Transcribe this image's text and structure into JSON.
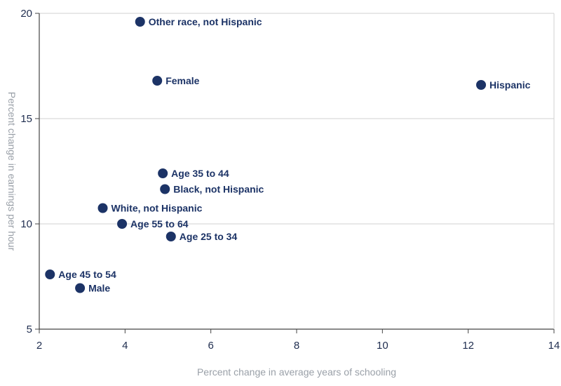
{
  "chart_data": {
    "type": "scatter",
    "xlabel": "Percent change in average years of schooling",
    "ylabel": "Percent change in earnings per hour",
    "xlim": [
      2,
      14
    ],
    "ylim": [
      5,
      20
    ],
    "x_ticks": [
      2,
      4,
      6,
      8,
      10,
      12,
      14
    ],
    "y_ticks": [
      5,
      10,
      15,
      20
    ],
    "grid": "horizontal",
    "marker_color": "#1c3366",
    "grid_color": "#d0d0d0",
    "axis_color": "#444444",
    "points": [
      {
        "label": "Other race, not Hispanic",
        "x": 4.35,
        "y": 19.6
      },
      {
        "label": "Female",
        "x": 4.75,
        "y": 16.8
      },
      {
        "label": "Hispanic",
        "x": 12.3,
        "y": 16.6
      },
      {
        "label": "Age 35 to 44",
        "x": 4.88,
        "y": 12.4
      },
      {
        "label": "Black, not Hispanic",
        "x": 4.93,
        "y": 11.65
      },
      {
        "label": "White, not Hispanic",
        "x": 3.48,
        "y": 10.75
      },
      {
        "label": "Age 55 to 64",
        "x": 3.93,
        "y": 10.0
      },
      {
        "label": "Age 25 to 34",
        "x": 5.07,
        "y": 9.4
      },
      {
        "label": "Age 45 to 54",
        "x": 2.25,
        "y": 7.6
      },
      {
        "label": "Male",
        "x": 2.95,
        "y": 6.95
      }
    ]
  }
}
